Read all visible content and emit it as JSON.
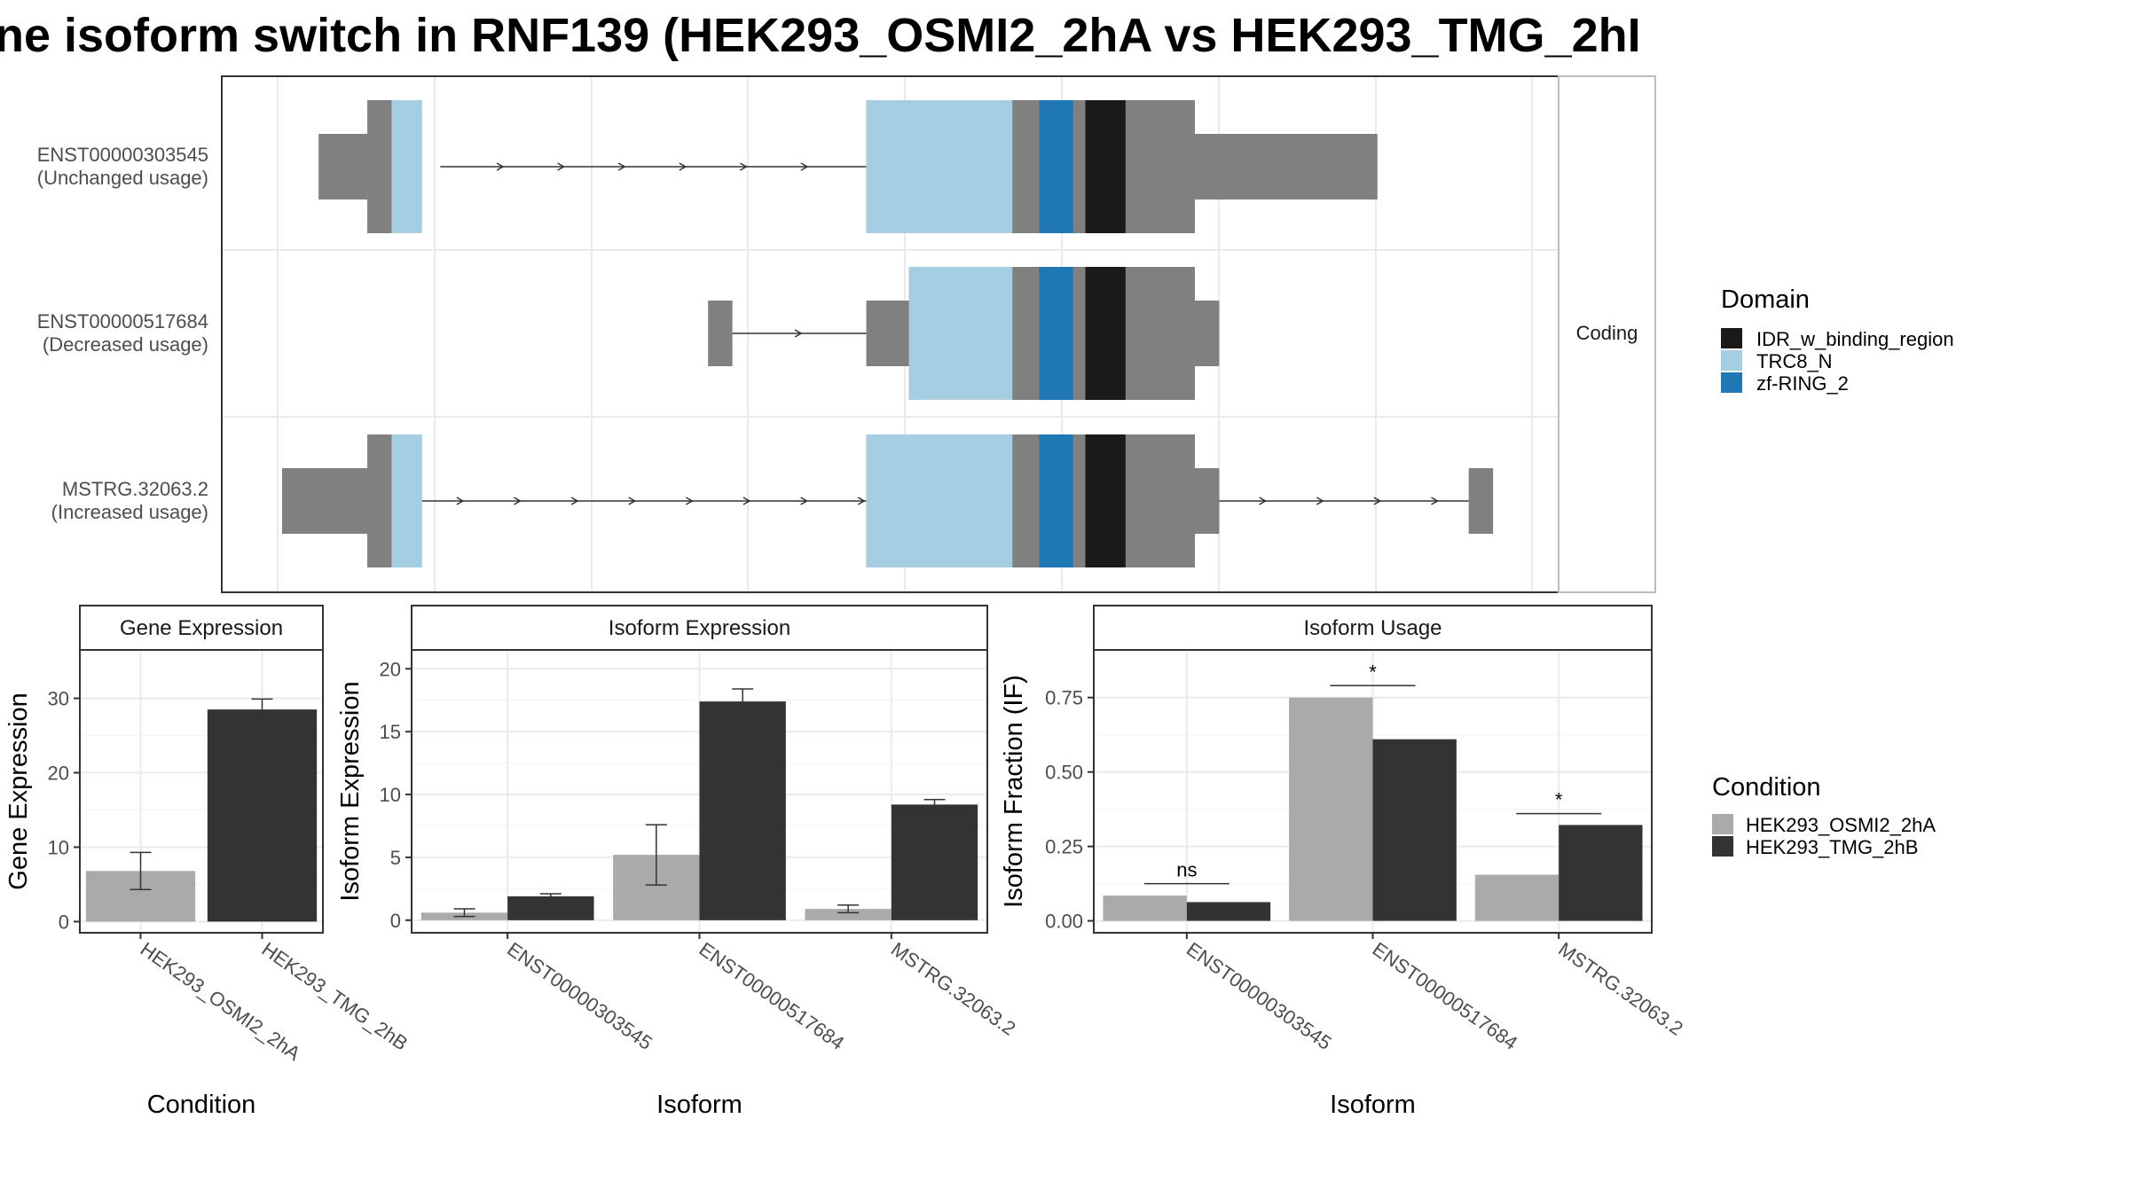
{
  "title": "ne isoform switch in RNF139 (HEK293_OSMI2_2hA vs HEK293_TMG_2hI",
  "colors": {
    "exon": "#808080",
    "IDR_w_binding_region": "#1a1a1a",
    "TRC8_N": "#a6cee3",
    "zf_RING_2": "#1f78b4",
    "cond_A": "#aaaaaa",
    "cond_B": "#333333",
    "grid": "#ebebeb",
    "strip_bg": "#ffffff"
  },
  "chart_data": [
    {
      "type": "gene-structure",
      "facet_label": "Coding",
      "legend": {
        "title": "Domain",
        "entries": [
          "IDR_w_binding_region",
          "TRC8_N",
          "zf-RING_2"
        ]
      },
      "x_range": [
        0,
        100
      ],
      "transcripts": [
        {
          "id": "ENST00000303545",
          "usage": "(Unchanged usage)",
          "line": [
            13,
            48
          ],
          "exons": [
            {
              "start": 3,
              "end": 7,
              "kind": "utr"
            },
            {
              "start": 7,
              "end": 9,
              "kind": "cds"
            },
            {
              "start": 48,
              "end": 90,
              "kind": "utr"
            },
            {
              "start": 48,
              "end": 75,
              "kind": "cds"
            }
          ],
          "domains": [
            {
              "name": "TRC8_N",
              "start": 9,
              "end": 11.5
            },
            {
              "name": "TRC8_N",
              "start": 48,
              "end": 60
            },
            {
              "name": "zf-RING_2",
              "start": 62.2,
              "end": 65
            },
            {
              "name": "IDR_w_binding_region",
              "start": 66,
              "end": 69.3
            }
          ]
        },
        {
          "id": "ENST00000517684",
          "usage": "(Decreased usage)",
          "line": [
            37,
            48
          ],
          "exons": [
            {
              "start": 35,
              "end": 37,
              "kind": "utr"
            },
            {
              "start": 48,
              "end": 77,
              "kind": "utr"
            },
            {
              "start": 51.5,
              "end": 75,
              "kind": "cds"
            }
          ],
          "domains": [
            {
              "name": "TRC8_N",
              "start": 51.5,
              "end": 60
            },
            {
              "name": "zf-RING_2",
              "start": 62.2,
              "end": 65
            },
            {
              "name": "IDR_w_binding_region",
              "start": 66,
              "end": 69.3
            }
          ]
        },
        {
          "id": "MSTRG.32063.2",
          "usage": "(Increased usage)",
          "line": [
            10,
            99.5
          ],
          "exons": [
            {
              "start": 0,
              "end": 7,
              "kind": "utr"
            },
            {
              "start": 7,
              "end": 9,
              "kind": "cds"
            },
            {
              "start": 48,
              "end": 77,
              "kind": "utr"
            },
            {
              "start": 48,
              "end": 75,
              "kind": "cds"
            },
            {
              "start": 97.5,
              "end": 99.5,
              "kind": "utr"
            }
          ],
          "domains": [
            {
              "name": "TRC8_N",
              "start": 9,
              "end": 11.5
            },
            {
              "name": "TRC8_N",
              "start": 48,
              "end": 60
            },
            {
              "name": "zf-RING_2",
              "start": 62.2,
              "end": 65
            },
            {
              "name": "IDR_w_binding_region",
              "start": 66,
              "end": 69.3
            }
          ]
        }
      ]
    },
    {
      "type": "bar",
      "strip": "Gene Expression",
      "xlabel": "Condition",
      "ylabel": "Gene Expression",
      "ylim": [
        -1.5,
        36.5
      ],
      "yticks": [
        0,
        10,
        20,
        30
      ],
      "categories": [
        "HEK293_OSMI2_2hA",
        "HEK293_TMG_2hB"
      ],
      "series": [
        {
          "values": [
            6.8,
            28.5
          ],
          "err_low": [
            4.3,
            27.2
          ],
          "err_high": [
            9.3,
            29.9
          ]
        }
      ]
    },
    {
      "type": "bar",
      "strip": "Isoform Expression",
      "xlabel": "Isoform",
      "ylabel": "Isoform Expression",
      "ylim": [
        -1.0,
        21.5
      ],
      "yticks": [
        0,
        5,
        10,
        15,
        20
      ],
      "categories": [
        "ENST00000303545",
        "ENST00000517684",
        "MSTRG.32063.2"
      ],
      "series": [
        {
          "name": "HEK293_OSMI2_2hA",
          "values": [
            0.6,
            5.2,
            0.9
          ],
          "err_low": [
            0.3,
            2.8,
            0.6
          ],
          "err_high": [
            0.9,
            7.6,
            1.2
          ]
        },
        {
          "name": "HEK293_TMG_2hB",
          "values": [
            1.9,
            17.4,
            9.2
          ],
          "err_low": [
            1.7,
            16.5,
            8.8
          ],
          "err_high": [
            2.1,
            18.4,
            9.6
          ]
        }
      ]
    },
    {
      "type": "bar",
      "strip": "Isoform Usage",
      "xlabel": "Isoform",
      "ylabel": "Isoform Fraction (IF)",
      "ylim": [
        -0.04,
        0.91
      ],
      "yticks": [
        0.0,
        0.25,
        0.5,
        0.75
      ],
      "ytick_labels": [
        "0.00",
        "0.25",
        "0.50",
        "0.75"
      ],
      "categories": [
        "ENST00000303545",
        "ENST00000517684",
        "MSTRG.32063.2"
      ],
      "series": [
        {
          "name": "HEK293_OSMI2_2hA",
          "values": [
            0.085,
            0.75,
            0.155
          ]
        },
        {
          "name": "HEK293_TMG_2hB",
          "values": [
            0.063,
            0.61,
            0.322
          ]
        }
      ],
      "significance": [
        {
          "category": 0,
          "label": "ns",
          "y": 0.125
        },
        {
          "category": 1,
          "label": "*",
          "y": 0.79
        },
        {
          "category": 2,
          "label": "*",
          "y": 0.36
        }
      ]
    }
  ],
  "condition_legend": {
    "title": "Condition",
    "entries": [
      "HEK293_OSMI2_2hA",
      "HEK293_TMG_2hB"
    ]
  }
}
